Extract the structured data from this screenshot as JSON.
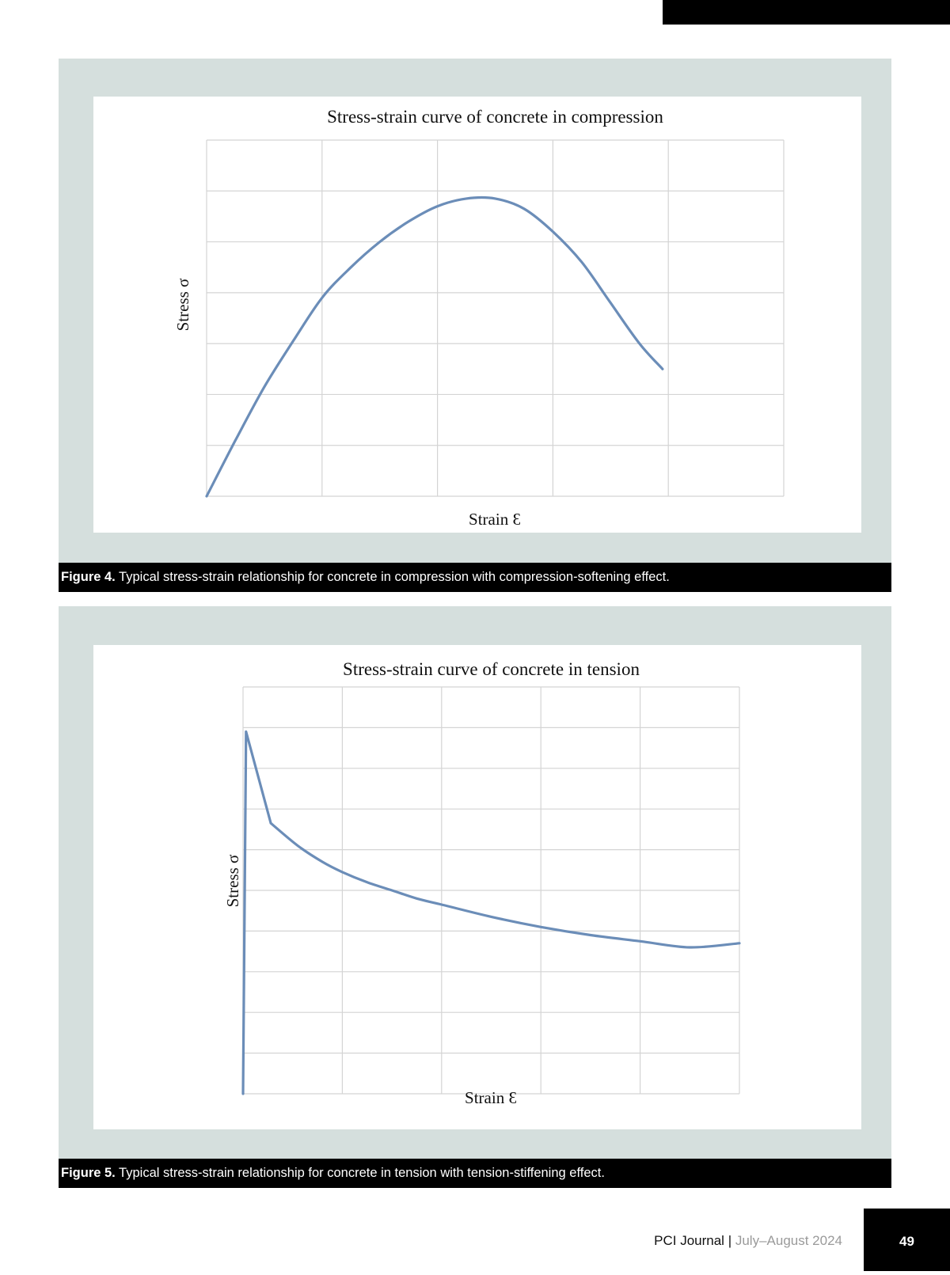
{
  "captions": {
    "fig4_label": "Figure 4.",
    "fig4_text": " Typical stress-strain relationship for concrete in compression with compression-softening effect.",
    "fig5_label": "Figure 5.",
    "fig5_text": " Typical stress-strain relationship for concrete in tension with tension-stiffening effect."
  },
  "footer": {
    "journal": "PCI Journal",
    "separator": " | ",
    "issue": "July–August 2024",
    "page_number": "49"
  },
  "chart_data": [
    {
      "type": "line",
      "title": "Stress-strain curve of concrete in compression",
      "xlabel": "Strain Ɛ",
      "ylabel": "Stress σ",
      "xlim": [
        0,
        5
      ],
      "ylim": [
        0,
        7
      ],
      "grid": true,
      "legend": "none",
      "series_color": "#6b8db8",
      "x": [
        0,
        0.25,
        0.5,
        0.75,
        1.0,
        1.25,
        1.5,
        1.75,
        2.0,
        2.25,
        2.5,
        2.75,
        3.0,
        3.25,
        3.5,
        3.75,
        3.95
      ],
      "y": [
        0,
        1.1,
        2.15,
        3.05,
        3.9,
        4.5,
        5.0,
        5.4,
        5.7,
        5.85,
        5.85,
        5.65,
        5.2,
        4.6,
        3.8,
        3.0,
        2.5
      ]
    },
    {
      "type": "line",
      "title": "Stress-strain curve of concrete in tension",
      "xlabel": "Strain Ɛ",
      "ylabel": "Stress σ",
      "xlim": [
        0,
        5
      ],
      "ylim": [
        0,
        10
      ],
      "grid": true,
      "legend": "none",
      "series_color": "#6b8db8",
      "x": [
        0,
        0.03,
        0.28,
        0.55,
        0.8,
        1.0,
        1.25,
        1.5,
        1.75,
        2.0,
        2.5,
        3.0,
        3.5,
        4.0,
        4.5,
        5.0
      ],
      "y": [
        0,
        8.9,
        6.65,
        6.1,
        5.7,
        5.45,
        5.2,
        5.0,
        4.8,
        4.65,
        4.35,
        4.1,
        3.9,
        3.75,
        3.6,
        3.7
      ]
    }
  ]
}
